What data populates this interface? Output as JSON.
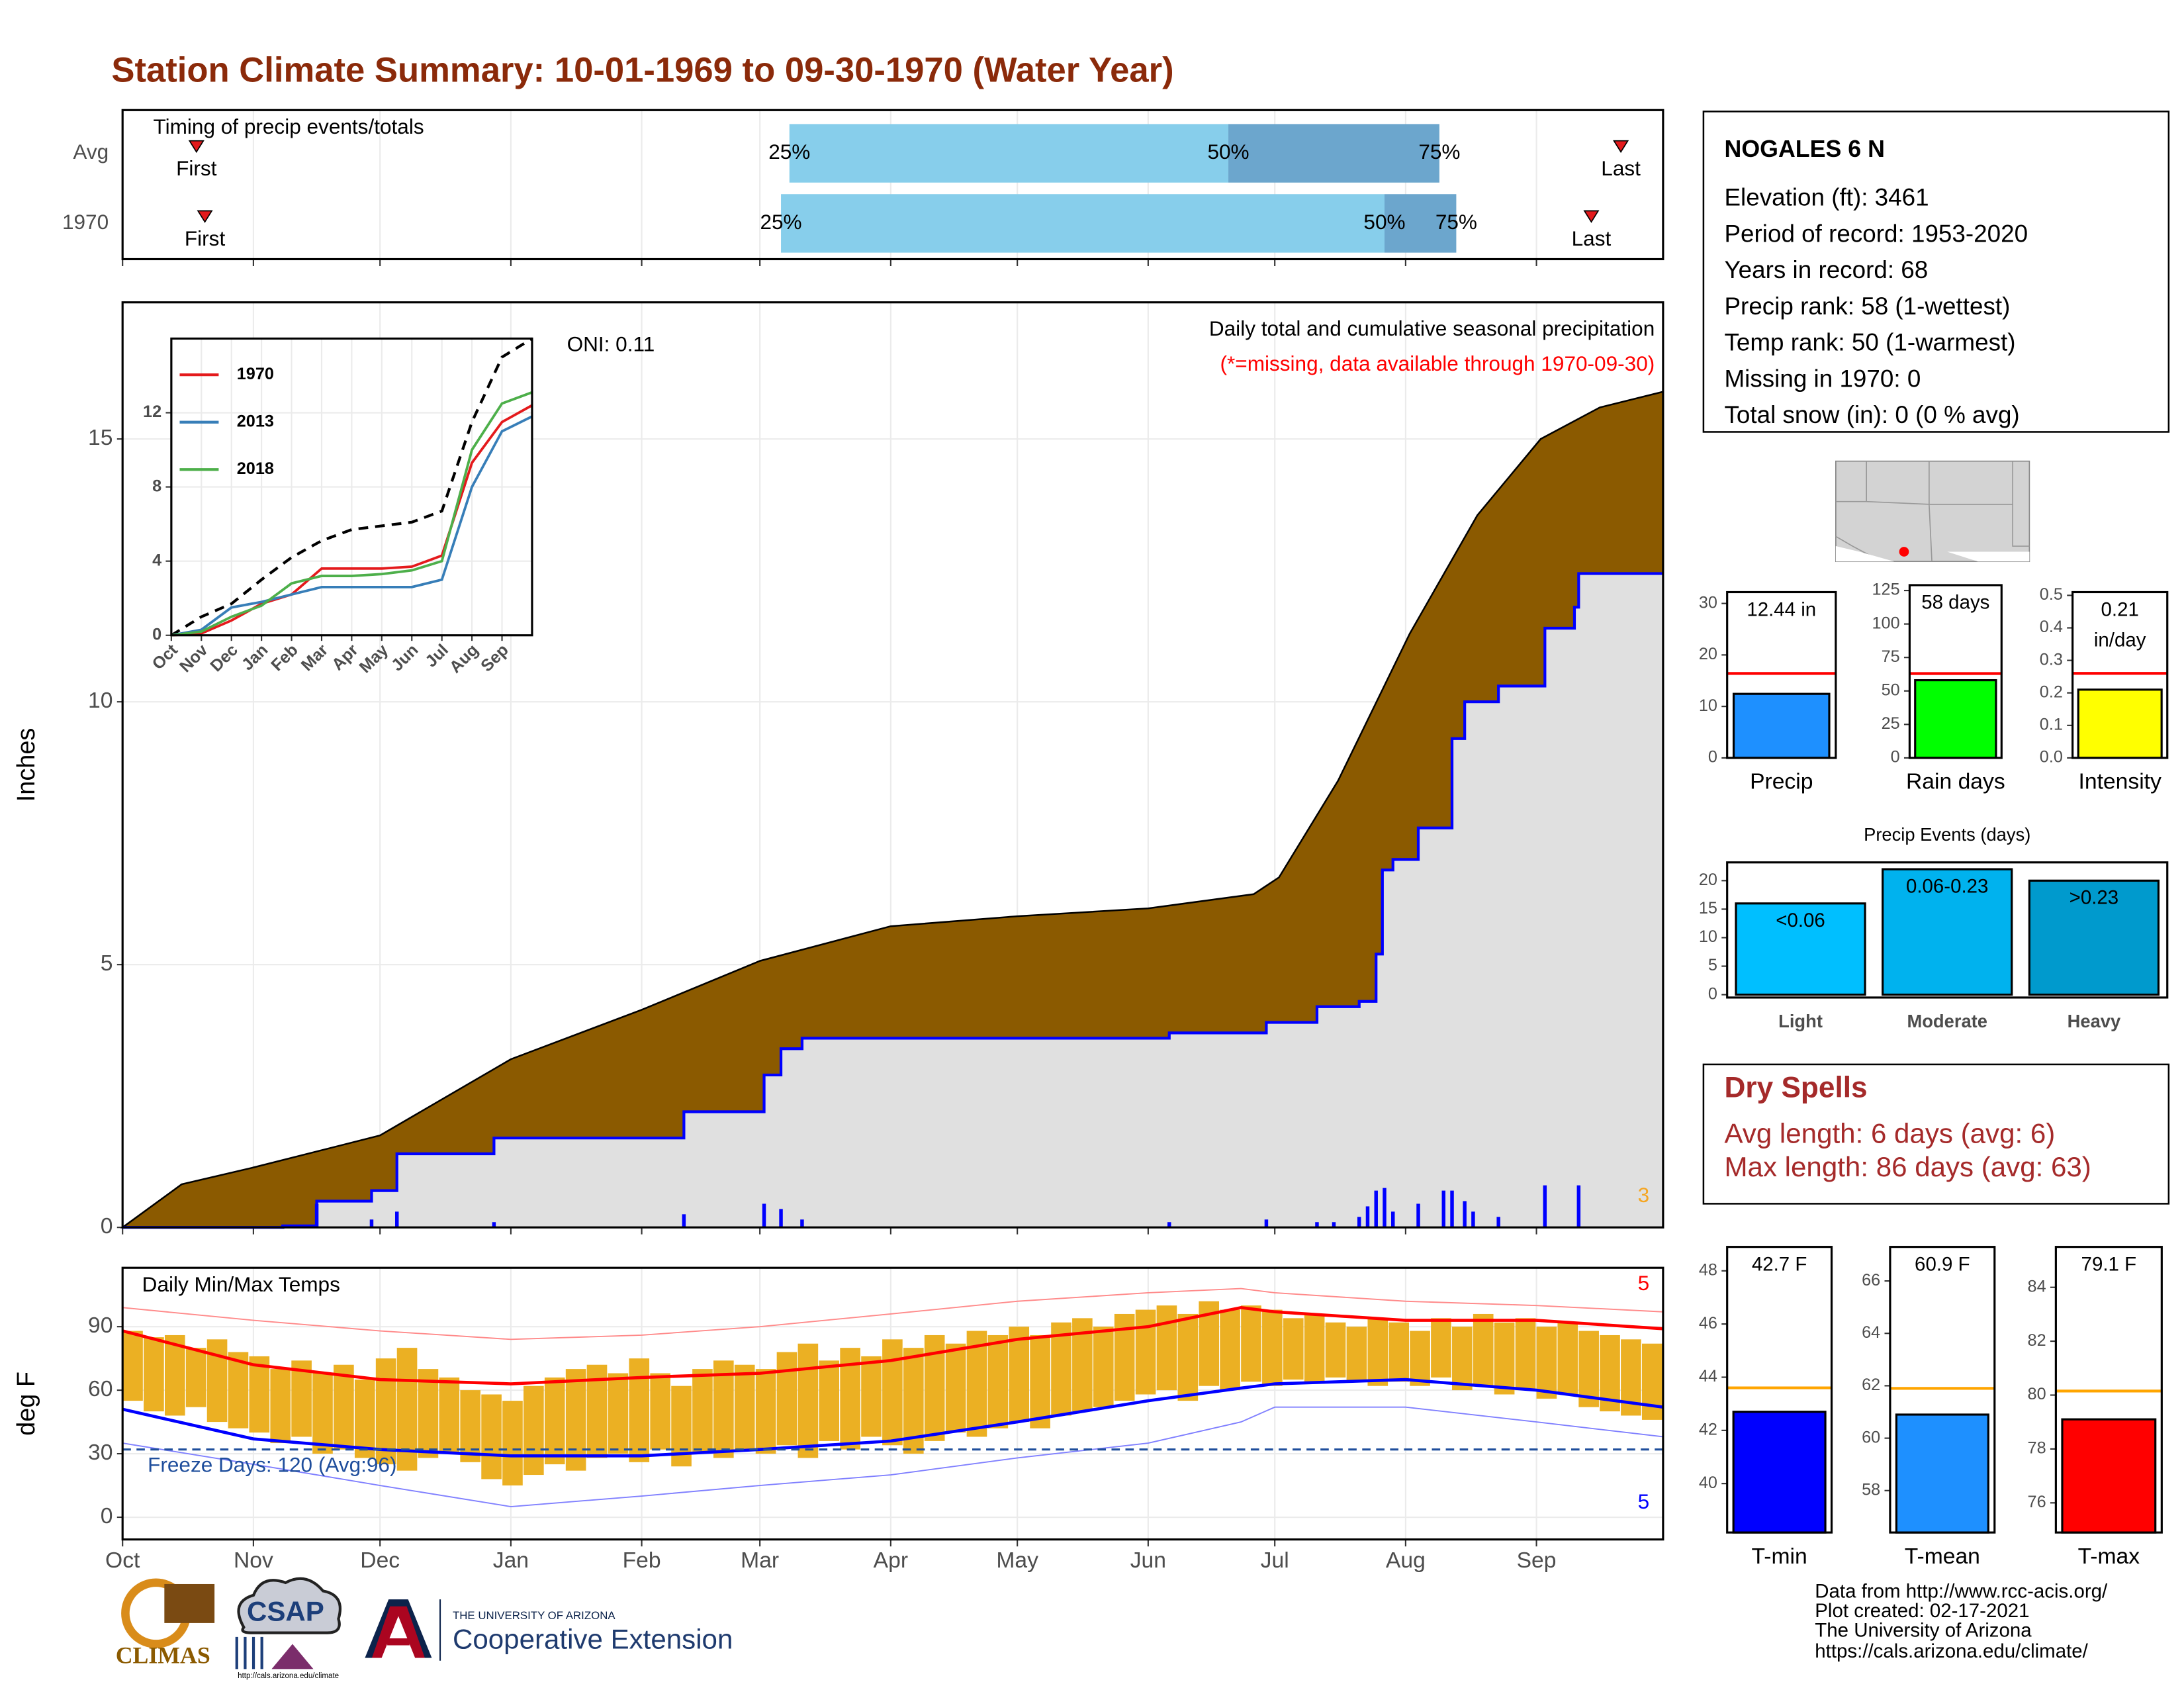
{
  "title": "Station Climate Summary: 10-01-1969 to 09-30-1970 (Water Year)",
  "station": {
    "name": "NOGALES 6 N",
    "lines": [
      "Elevation (ft): 3461",
      "Period of record: 1953-2020",
      "Years in record: 68",
      "Precip rank: 58 (1-wettest)",
      "Temp rank: 50 (1-warmest)",
      "Missing in 1970: 0",
      "Total snow (in): 0 (0 % avg)"
    ]
  },
  "dry_spells": {
    "title": "Dry Spells",
    "lines": [
      "Avg length: 6 days (avg: 6)",
      "Max length: 86 days (avg: 63)"
    ]
  },
  "footer": [
    "Data from http://www.rcc-acis.org/",
    "Plot created: 02-17-2021",
    "The University of Arizona",
    "https://cals.arizona.edu/climate/"
  ],
  "logos": {
    "climas": "CLIMAS",
    "csap": "CSAP",
    "csap_url": "http://cals.arizona.edu/climate",
    "ua": "THE UNIVERSITY OF ARIZONA",
    "extension": "Cooperative Extension"
  },
  "chart_data": [
    {
      "type": "timeline",
      "title": "Timing of precip events/totals",
      "categories": [
        "Avg",
        "1970"
      ],
      "first": [
        17.5,
        19.5
      ],
      "first_label": "First",
      "last": [
        355,
        348
      ],
      "last_label": "Last",
      "q25": [
        158,
        156
      ],
      "q50": [
        262,
        299
      ],
      "q75": [
        312,
        316
      ],
      "quantile_labels": [
        "25%",
        "50%",
        "75%"
      ],
      "colors": [
        "#87ceeb",
        "#6ca6cd"
      ],
      "marker_color": "#e31a1c",
      "xlim": [
        0,
        365
      ]
    },
    {
      "type": "area",
      "title": "Daily total and cumulative seasonal precipitation",
      "subtitle": "(*=missing, data available through 1970-09-30)",
      "annotation": "ONI: 0.11",
      "ylabel": "Inches",
      "xlim": [
        0,
        365
      ],
      "ylim": [
        0,
        17.6
      ],
      "yticks": [
        0,
        5,
        10,
        15
      ],
      "grid": true,
      "average_cumulative": {
        "color": "#8b5a00",
        "x": [
          0,
          14,
          31,
          61,
          92,
          123,
          151,
          182,
          212,
          243,
          268,
          274,
          288,
          305,
          321,
          336,
          350,
          365
        ],
        "values": [
          0,
          0.82,
          1.14,
          1.75,
          3.2,
          4.14,
          5.07,
          5.73,
          5.92,
          6.07,
          6.34,
          6.66,
          8.5,
          11.3,
          13.55,
          15.0,
          15.6,
          15.9
        ]
      },
      "cumulative": {
        "color": "#0000ff",
        "fill": "#e0e0e0",
        "x": [
          0,
          38,
          46,
          59,
          65,
          88,
          133,
          152,
          156,
          161,
          248,
          271,
          283,
          293,
          297,
          298.5,
          301,
          307,
          315,
          318,
          326,
          337,
          344,
          345,
          365
        ],
        "values": [
          0,
          0.03,
          0.5,
          0.7,
          1.4,
          1.7,
          2.2,
          2.9,
          3.4,
          3.6,
          3.7,
          3.9,
          4.2,
          4.3,
          5.2,
          6.8,
          7.0,
          7.6,
          9.3,
          10.0,
          10.3,
          11.4,
          11.8,
          12.44,
          12.44
        ]
      },
      "daily": {
        "color": "#0000ff",
        "x": [
          38,
          46,
          59,
          65,
          88,
          133,
          152,
          156,
          161,
          248,
          271,
          283,
          287,
          293,
          295,
          297,
          299,
          301,
          307,
          313,
          315,
          318,
          320,
          326,
          337,
          345
        ],
        "values": [
          0.05,
          0.45,
          0.15,
          0.3,
          0.1,
          0.25,
          0.45,
          0.35,
          0.15,
          0.1,
          0.15,
          0.1,
          0.1,
          0.2,
          0.4,
          0.7,
          0.75,
          0.3,
          0.45,
          0.7,
          0.7,
          0.5,
          0.3,
          0.2,
          0.8,
          0.8
        ]
      },
      "record_count": 3,
      "record_color": "#f5a623"
    },
    {
      "type": "line",
      "xlim": [
        0,
        12
      ],
      "ylim": [
        0,
        16
      ],
      "grid": true,
      "x": [
        0,
        1,
        2,
        3,
        4,
        5,
        6,
        7,
        8,
        9,
        10,
        11,
        12
      ],
      "xticks": [
        {
          "value": 0,
          "label": "Oct"
        },
        {
          "value": 1,
          "label": "Nov"
        },
        {
          "value": 2,
          "label": "Dec"
        },
        {
          "value": 3,
          "label": "Jan"
        },
        {
          "value": 4,
          "label": "Feb"
        },
        {
          "value": 5,
          "label": "Mar"
        },
        {
          "value": 6,
          "label": "Apr"
        },
        {
          "value": 7,
          "label": "May"
        },
        {
          "value": 8,
          "label": "Jun"
        },
        {
          "value": 9,
          "label": "Jul"
        },
        {
          "value": 10,
          "label": "Aug"
        },
        {
          "value": 11,
          "label": "Sep"
        }
      ],
      "yticks": [
        0,
        4,
        8,
        12
      ],
      "average": {
        "color": "#000000",
        "values": [
          0,
          1.0,
          1.7,
          3.0,
          4.2,
          5.1,
          5.7,
          5.9,
          6.1,
          6.7,
          11.5,
          15.0,
          16.0
        ]
      },
      "series": [
        {
          "name": "1970",
          "color": "#e41a1c",
          "values": [
            0,
            0.1,
            0.8,
            1.7,
            2.2,
            3.6,
            3.6,
            3.6,
            3.7,
            4.3,
            9.3,
            11.5,
            12.4
          ]
        },
        {
          "name": "2013",
          "color": "#377eb8",
          "values": [
            0,
            0.3,
            1.5,
            1.8,
            2.2,
            2.6,
            2.6,
            2.6,
            2.6,
            3.0,
            8.0,
            11.0,
            11.8
          ]
        },
        {
          "name": "2018",
          "color": "#4daf4a",
          "values": [
            0,
            0.2,
            1.0,
            1.6,
            2.8,
            3.2,
            3.2,
            3.3,
            3.5,
            4.0,
            10.0,
            12.5,
            13.1
          ]
        }
      ]
    },
    {
      "type": "range_bar",
      "title": "Daily Min/Max Temps",
      "ylabel": "deg F",
      "xlim": [
        0,
        365
      ],
      "ylim": [
        -10.5,
        117.8
      ],
      "yticks": [
        0,
        30,
        60,
        90
      ],
      "grid": true,
      "xticks": [
        {
          "value": 0,
          "label": "Oct"
        },
        {
          "value": 31,
          "label": "Nov"
        },
        {
          "value": 61,
          "label": "Dec"
        },
        {
          "value": 92,
          "label": "Jan"
        },
        {
          "value": 123,
          "label": "Feb"
        },
        {
          "value": 151,
          "label": "Mar"
        },
        {
          "value": 182,
          "label": "Apr"
        },
        {
          "value": 212,
          "label": "May"
        },
        {
          "value": 243,
          "label": "Jun"
        },
        {
          "value": 273,
          "label": "Jul"
        },
        {
          "value": 304,
          "label": "Aug"
        },
        {
          "value": 335,
          "label": "Sep"
        }
      ],
      "bar_color": "#ebb023",
      "x": [
        0,
        5,
        10,
        15,
        20,
        25,
        30,
        35,
        40,
        45,
        50,
        55,
        60,
        65,
        70,
        75,
        80,
        85,
        90,
        95,
        100,
        105,
        110,
        115,
        120,
        125,
        130,
        135,
        140,
        145,
        150,
        155,
        160,
        165,
        170,
        175,
        180,
        185,
        190,
        195,
        200,
        205,
        210,
        215,
        220,
        225,
        230,
        235,
        240,
        245,
        250,
        255,
        260,
        265,
        270,
        275,
        280,
        285,
        290,
        295,
        300,
        305,
        310,
        315,
        320,
        325,
        330,
        335,
        340,
        345,
        350,
        355,
        360
      ],
      "max": [
        88,
        85,
        86,
        80,
        84,
        78,
        76,
        70,
        74,
        68,
        72,
        65,
        75,
        80,
        70,
        66,
        60,
        58,
        55,
        62,
        66,
        70,
        72,
        68,
        75,
        68,
        62,
        70,
        74,
        72,
        70,
        78,
        82,
        74,
        80,
        76,
        84,
        80,
        86,
        82,
        88,
        86,
        90,
        86,
        92,
        94,
        90,
        96,
        98,
        100,
        96,
        102,
        98,
        100,
        98,
        94,
        96,
        92,
        90,
        94,
        92,
        88,
        94,
        90,
        96,
        92,
        94,
        90,
        92,
        88,
        86,
        84,
        82
      ],
      "min": [
        55,
        50,
        48,
        52,
        45,
        42,
        40,
        35,
        38,
        30,
        32,
        28,
        25,
        22,
        28,
        30,
        26,
        18,
        15,
        20,
        25,
        22,
        28,
        30,
        26,
        32,
        24,
        30,
        28,
        32,
        30,
        34,
        28,
        36,
        32,
        38,
        34,
        30,
        36,
        40,
        38,
        42,
        45,
        42,
        48,
        50,
        52,
        55,
        58,
        60,
        55,
        62,
        60,
        64,
        62,
        65,
        63,
        66,
        64,
        62,
        64,
        62,
        66,
        60,
        62,
        58,
        60,
        56,
        58,
        52,
        50,
        48,
        46
      ],
      "avg_max": {
        "color": "#ff0000",
        "x": [
          0,
          31,
          61,
          92,
          123,
          151,
          182,
          212,
          243,
          265,
          273,
          304,
          335,
          365
        ],
        "values": [
          88,
          72,
          65,
          63,
          66,
          68,
          74,
          84,
          90,
          99,
          97,
          93,
          93,
          89
        ]
      },
      "avg_min": {
        "color": "#0000ff",
        "x": [
          0,
          31,
          61,
          92,
          123,
          151,
          182,
          212,
          243,
          265,
          273,
          304,
          335,
          365
        ],
        "values": [
          51,
          37,
          32,
          29,
          29,
          32,
          36,
          45,
          55,
          61,
          63,
          65,
          60,
          52
        ]
      },
      "record_max": {
        "color": "#ff8a8a",
        "x": [
          0,
          31,
          61,
          92,
          123,
          151,
          182,
          212,
          243,
          265,
          273,
          304,
          335,
          365
        ],
        "values": [
          99,
          93,
          88,
          84,
          86,
          90,
          96,
          102,
          106,
          108,
          106,
          102,
          100,
          97
        ]
      },
      "record_min": {
        "color": "#8080ff",
        "x": [
          0,
          31,
          61,
          92,
          123,
          151,
          182,
          212,
          243,
          265,
          273,
          304,
          335,
          365
        ],
        "values": [
          35,
          25,
          15,
          5,
          10,
          15,
          20,
          28,
          35,
          45,
          52,
          52,
          45,
          38
        ]
      },
      "freeze_line": 32,
      "freeze_color": "#1f4e9c",
      "freeze_label": "Freeze Days: 120 (Avg:96)",
      "max_record_count": 5,
      "min_record_count": 5
    },
    {
      "type": "bar",
      "categories": [
        "Precip"
      ],
      "values": [
        12.44
      ],
      "value_labels": [
        "12.44 in"
      ],
      "color": "#1e90ff",
      "average": 16.4,
      "average_color": "#ff0000",
      "ylim": [
        0,
        32.2
      ],
      "yticks": [
        0,
        10,
        20,
        30
      ]
    },
    {
      "type": "bar",
      "categories": [
        "Rain days"
      ],
      "values": [
        58
      ],
      "value_labels": [
        "58 days"
      ],
      "color": "#00ff00",
      "average": 63,
      "average_color": "#ff0000",
      "ylim": [
        0,
        129
      ],
      "yticks": [
        0,
        25,
        50,
        75,
        100,
        125
      ]
    },
    {
      "type": "bar",
      "categories": [
        "Intensity"
      ],
      "values": [
        0.21
      ],
      "value_labels": [
        "0.21 in/day"
      ],
      "color": "#ffff00",
      "average": 0.26,
      "average_color": "#ff0000",
      "ylim": [
        0,
        0.51
      ],
      "yticks": [
        {
          "value": 0,
          "label": "0.0"
        },
        0.1,
        0.2,
        0.3,
        0.4,
        0.5
      ]
    },
    {
      "type": "bar",
      "title": "Precip Events (days)",
      "categories": [
        "Light",
        "Moderate",
        "Heavy"
      ],
      "values": [
        16,
        22,
        20
      ],
      "bin_labels": [
        "<0.06",
        "0.06-0.23",
        ">0.23"
      ],
      "colors": [
        "#00bfff",
        "#00b2ee",
        "#009acd"
      ],
      "ylim": [
        -0.5,
        23.2
      ],
      "yticks": [
        0,
        5,
        10,
        15,
        20
      ]
    },
    {
      "type": "bar",
      "categories": [
        "T-min"
      ],
      "values": [
        42.7
      ],
      "value_labels": [
        "42.7 F"
      ],
      "color": "#0000ff",
      "average": 43.6,
      "average_color": "#ffa500",
      "ylim": [
        38.16,
        48.9
      ],
      "yticks": [
        40,
        42,
        44,
        46,
        48
      ]
    },
    {
      "type": "bar",
      "categories": [
        "T-mean"
      ],
      "values": [
        60.9
      ],
      "value_labels": [
        "60.9 F"
      ],
      "color": "#1e90ff",
      "average": 61.9,
      "average_color": "#ffa500",
      "ylim": [
        56.4,
        67.3
      ],
      "yticks": [
        58,
        60,
        62,
        64,
        66
      ]
    },
    {
      "type": "bar",
      "categories": [
        "T-max"
      ],
      "values": [
        79.1
      ],
      "value_labels": [
        "79.1 F"
      ],
      "color": "#ff0000",
      "average": 80.15,
      "average_color": "#ffa500",
      "ylim": [
        74.9,
        85.5
      ],
      "yticks": [
        76,
        78,
        80,
        82,
        84
      ]
    }
  ]
}
